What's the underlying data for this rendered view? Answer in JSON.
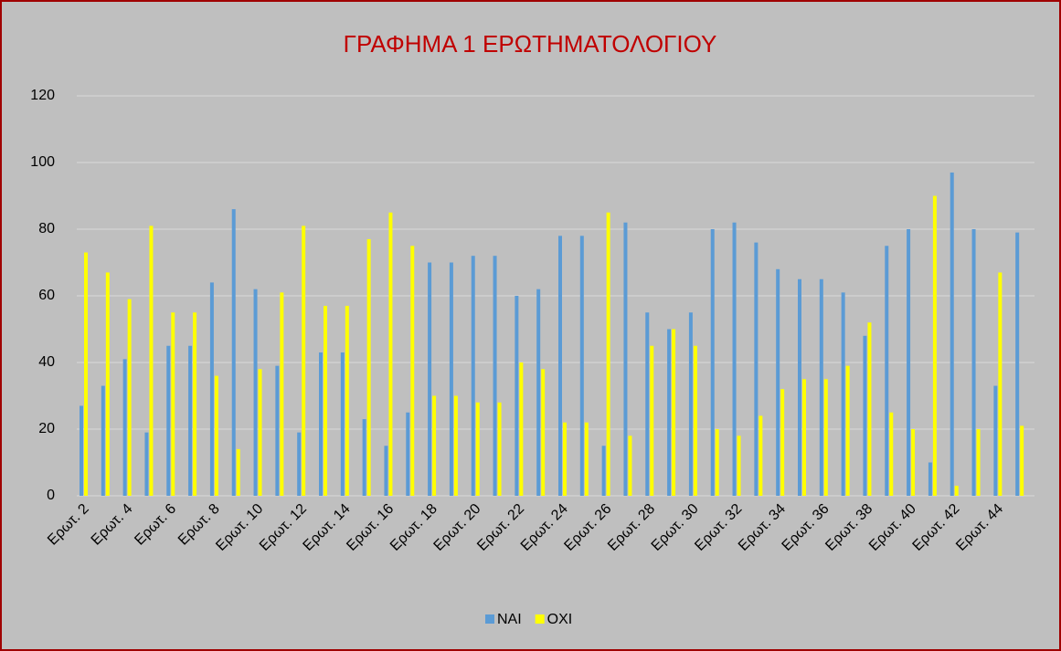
{
  "chart_data": {
    "type": "bar",
    "title": "ΓΡΑΦΗΜΑ 1 ΕΡΩΤΗΜΑΤΟΛΟΓΙΟΥ",
    "categories": [
      "Ερωτ. 2",
      null,
      "Ερωτ. 4",
      null,
      "Ερωτ. 6",
      null,
      "Ερωτ. 8",
      null,
      "Ερωτ. 10",
      null,
      "Ερωτ. 12",
      null,
      "Ερωτ. 14",
      null,
      "Ερωτ. 16",
      null,
      "Ερωτ. 18",
      null,
      "Ερωτ. 20",
      null,
      "Ερωτ. 22",
      null,
      "Ερωτ. 24",
      null,
      "Ερωτ. 26",
      null,
      "Ερωτ. 28",
      null,
      "Ερωτ. 30",
      null,
      "Ερωτ. 32",
      null,
      "Ερωτ. 34",
      null,
      "Ερωτ. 36",
      null,
      "Ερωτ. 38",
      null,
      "Ερωτ. 40",
      null,
      "Ερωτ. 42",
      null,
      "Ερωτ. 44",
      null
    ],
    "series": [
      {
        "name": "ΝΑΙ",
        "color": "#5b9bd5",
        "values": [
          27,
          33,
          41,
          19,
          45,
          45,
          64,
          86,
          62,
          39,
          19,
          43,
          43,
          23,
          15,
          25,
          70,
          70,
          72,
          72,
          60,
          62,
          78,
          78,
          15,
          82,
          55,
          50,
          55,
          80,
          82,
          76,
          68,
          65,
          65,
          61,
          48,
          75,
          80,
          10,
          97,
          80,
          33,
          79
        ]
      },
      {
        "name": "ΟΧΙ",
        "color": "#ffff00",
        "values": [
          73,
          67,
          59,
          81,
          55,
          55,
          36,
          14,
          38,
          61,
          81,
          57,
          57,
          77,
          85,
          75,
          30,
          30,
          28,
          28,
          40,
          38,
          22,
          22,
          85,
          18,
          45,
          50,
          45,
          20,
          18,
          24,
          32,
          35,
          35,
          39,
          52,
          25,
          20,
          90,
          3,
          20,
          67,
          21
        ]
      }
    ],
    "ylim": [
      0,
      120
    ],
    "yticks": [
      0,
      20,
      40,
      60,
      80,
      100,
      120
    ],
    "grid": true,
    "legend": "bottom"
  }
}
